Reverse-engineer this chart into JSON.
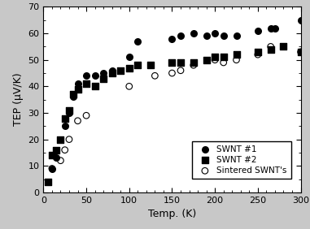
{
  "swnt1_x": [
    5,
    10,
    15,
    20,
    25,
    30,
    35,
    40,
    50,
    60,
    70,
    80,
    100,
    110,
    150,
    160,
    175,
    190,
    200,
    210,
    225,
    250,
    265,
    270,
    300
  ],
  "swnt1_y": [
    4,
    9,
    13,
    20,
    25,
    30,
    36,
    41,
    44,
    44,
    45,
    46,
    51,
    57,
    58,
    59,
    60,
    59,
    60,
    59,
    59,
    61,
    62,
    62,
    65
  ],
  "swnt2_x": [
    5,
    10,
    15,
    20,
    25,
    30,
    35,
    40,
    50,
    60,
    70,
    80,
    90,
    100,
    110,
    125,
    150,
    160,
    175,
    190,
    200,
    210,
    225,
    250,
    265,
    280,
    300
  ],
  "swnt2_y": [
    4,
    14,
    16,
    20,
    28,
    31,
    37,
    39,
    41,
    40,
    43,
    45,
    46,
    47,
    48,
    48,
    49,
    49,
    49,
    50,
    51,
    51,
    52,
    53,
    54,
    55,
    53
  ],
  "sintered_x": [
    10,
    20,
    25,
    30,
    40,
    50,
    100,
    130,
    150,
    160,
    175,
    200,
    210,
    225,
    250,
    265,
    300
  ],
  "sintered_y": [
    9,
    12,
    16,
    20,
    27,
    29,
    40,
    44,
    45,
    46,
    48,
    50,
    49,
    50,
    52,
    55,
    53
  ],
  "xlim": [
    0,
    300
  ],
  "ylim": [
    0,
    70
  ],
  "xticks": [
    0,
    50,
    100,
    150,
    200,
    250,
    300
  ],
  "yticks": [
    0,
    10,
    20,
    30,
    40,
    50,
    60,
    70
  ],
  "xlabel": "Temp. (K)",
  "ylabel": "TEP (μV/K)",
  "legend_labels": [
    "SWNT #1",
    "SWNT #2",
    "Sintered SWNT's"
  ],
  "bg_color": "#c8c8c8",
  "plot_bg": "#ffffff",
  "marker_size": 30
}
